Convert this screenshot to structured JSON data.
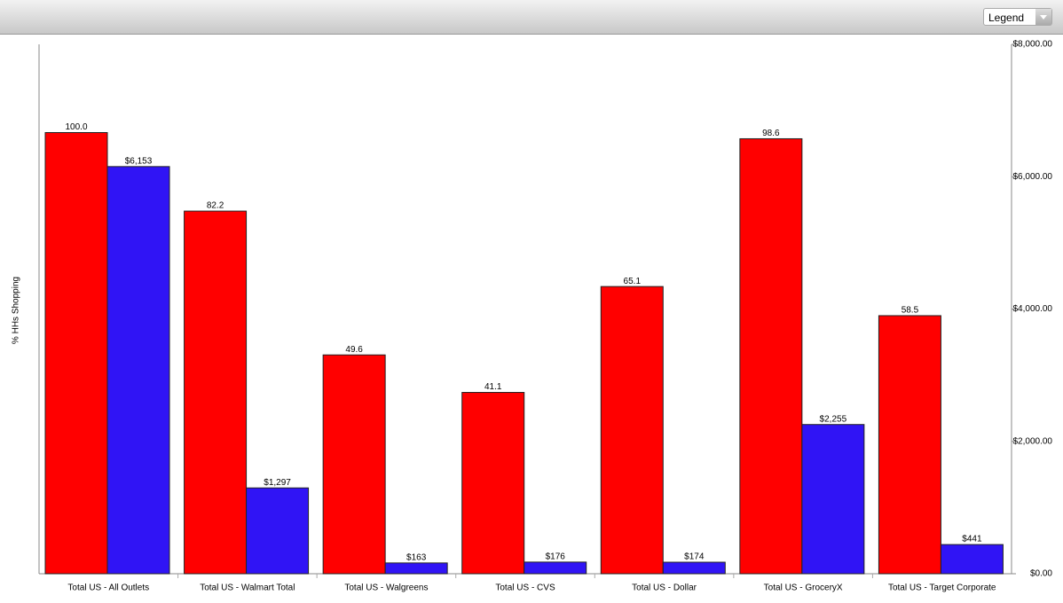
{
  "toolbar": {
    "legend_button": "Legend"
  },
  "chart_data": {
    "type": "bar",
    "y_label": "% HHs Shopping",
    "categories": [
      "Total US - All Outlets",
      "Total US - Walmart Total",
      "Total US - Walgreens",
      "Total US - CVS",
      "Total US - Dollar",
      "Total US - GroceryX",
      "Total US - Target Corporate"
    ],
    "series": [
      {
        "color": "#ff0000",
        "values": [
          100.0,
          82.2,
          49.6,
          41.1,
          65.1,
          98.6,
          58.5
        ],
        "value_labels": [
          "100.0",
          "82.2",
          "49.6",
          "41.1",
          "65.1",
          "98.6",
          "58.5"
        ]
      },
      {
        "color": "#3014f5",
        "axis": "y2",
        "values": [
          6153,
          1297,
          163,
          176,
          174,
          2255,
          441
        ],
        "value_labels": [
          "$6,153",
          "$1,297",
          "$163",
          "$176",
          "$174",
          "$2,255",
          "$441"
        ]
      }
    ],
    "ylim": [
      0,
      120
    ],
    "y2lim": [
      0,
      8000
    ],
    "y2ticks": [
      {
        "value": 0,
        "label": "$0.00"
      },
      {
        "value": 2000,
        "label": "$2,000.00"
      },
      {
        "value": 4000,
        "label": "$4,000.00"
      },
      {
        "value": 6000,
        "label": "$6,000.00"
      },
      {
        "value": 8000,
        "label": "$8,000.00"
      }
    ]
  }
}
